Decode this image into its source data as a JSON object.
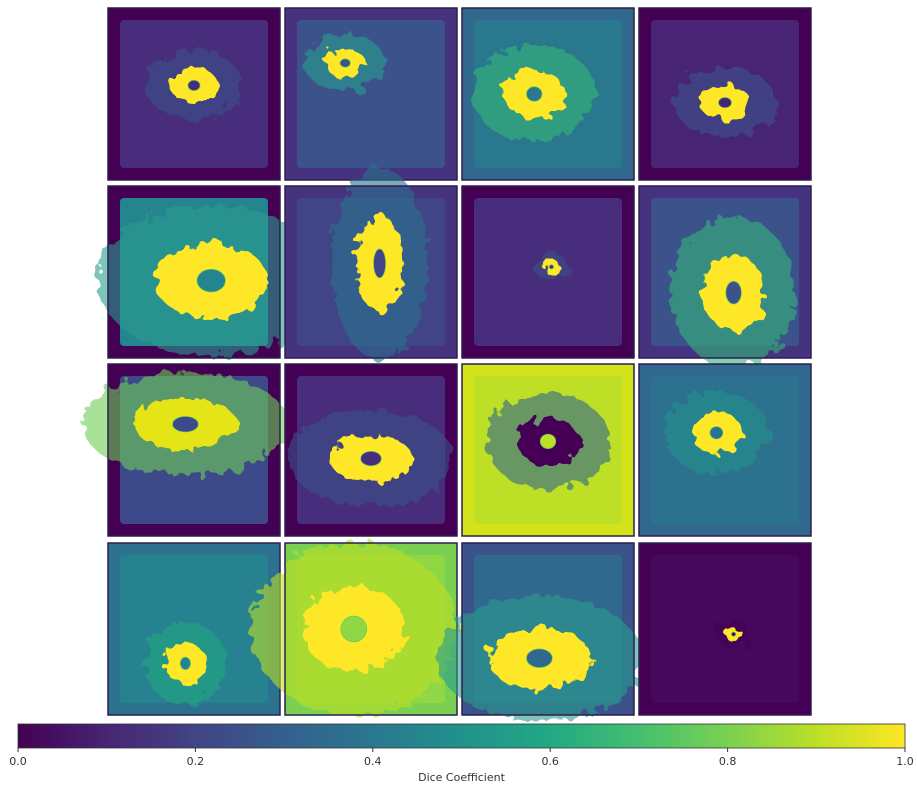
{
  "chart_data": {
    "type": "colorbar",
    "xlabel": "Dice Coefficient",
    "colormap": "viridis",
    "xlim": [
      0,
      1
    ],
    "xticks": [
      {
        "value": 0,
        "label": "0.0"
      },
      {
        "value": 0.2,
        "label": "0.2"
      },
      {
        "value": 0.4,
        "label": "0.4"
      },
      {
        "value": 0.6,
        "label": "0.6"
      },
      {
        "value": 0.8,
        "label": "0.8"
      },
      {
        "value": 1,
        "label": "1.0"
      }
    ]
  }
}
